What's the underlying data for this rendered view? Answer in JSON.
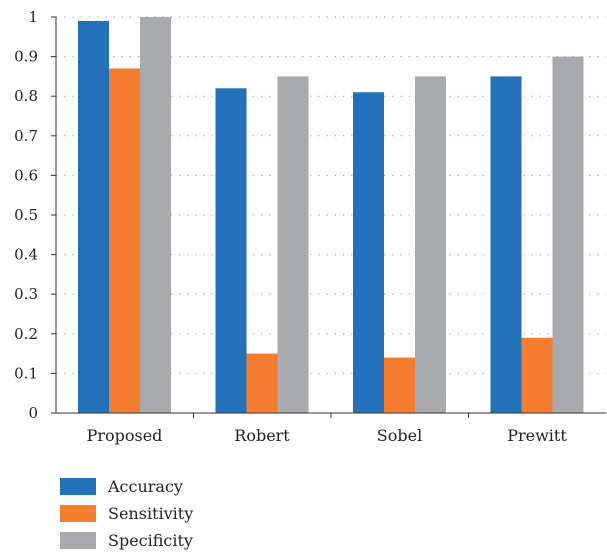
{
  "chart_data": {
    "type": "bar",
    "title": "",
    "xlabel": "",
    "ylabel": "",
    "categories": [
      "Proposed",
      "Robert",
      "Sobel",
      "Prewitt"
    ],
    "series": [
      {
        "name": "Accuracy",
        "color": "#2271b9",
        "values": [
          0.99,
          0.82,
          0.81,
          0.85
        ]
      },
      {
        "name": "Sensitivity",
        "color": "#f47d30",
        "values": [
          0.87,
          0.15,
          0.14,
          0.19
        ]
      },
      {
        "name": "Specificity",
        "color": "#a9aaad",
        "values": [
          1.0,
          0.85,
          0.85,
          0.9
        ]
      }
    ],
    "ylim": [
      0,
      1
    ],
    "yticks": [
      "0",
      "0.1",
      "0.2",
      "0.3",
      "0.4",
      "0.5",
      "0.6",
      "0.7",
      "0.8",
      "0.9",
      "1"
    ],
    "grid": "dotted horizontal",
    "legend_position": "bottom-left"
  }
}
